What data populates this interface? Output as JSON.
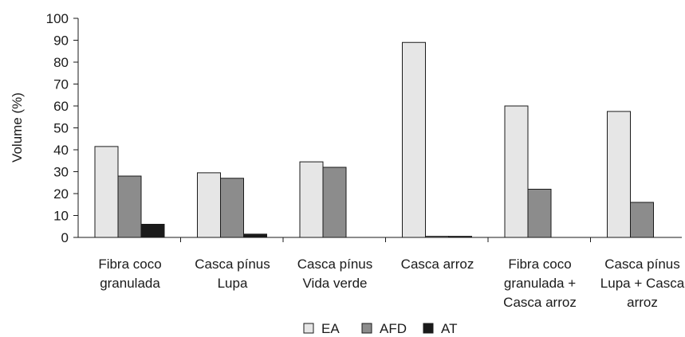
{
  "chart_data": {
    "type": "bar",
    "title": "",
    "xlabel": "",
    "ylabel": "Volume (%)",
    "ylim": [
      0,
      100
    ],
    "yticks": [
      0,
      10,
      20,
      30,
      40,
      50,
      60,
      70,
      80,
      90,
      100
    ],
    "grid": false,
    "legend_position": "bottom",
    "categories": [
      [
        "Fibra coco",
        "granulada"
      ],
      [
        "Casca pínus",
        "Lupa"
      ],
      [
        "Casca pínus",
        "Vida verde"
      ],
      [
        "Casca arroz"
      ],
      [
        "Fibra coco",
        "granulada +",
        "Casca arroz"
      ],
      [
        "Casca pínus",
        "Lupa + Casca",
        "arroz"
      ]
    ],
    "series": [
      {
        "name": "EA",
        "color": "#e6e6e6",
        "values": [
          41.5,
          29.5,
          34.5,
          89,
          60,
          57.5
        ]
      },
      {
        "name": "AFD",
        "color": "#8c8c8c",
        "values": [
          28,
          27,
          32,
          0.5,
          22,
          16
        ]
      },
      {
        "name": "AT",
        "color": "#1a1a1a",
        "values": [
          6,
          1.5,
          0,
          0.5,
          0,
          0
        ]
      }
    ]
  }
}
